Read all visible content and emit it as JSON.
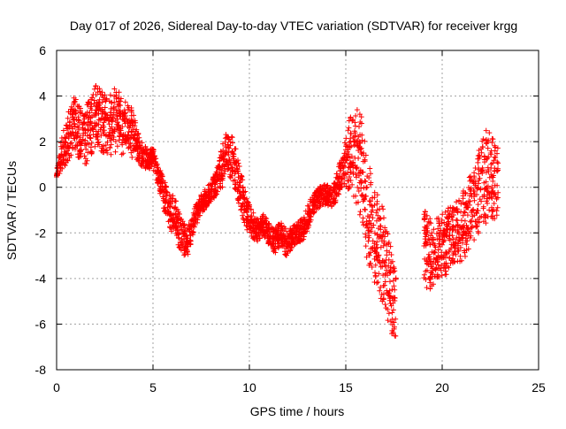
{
  "chart_data": {
    "type": "scatter",
    "title": "Day 017 of 2026, Sidereal Day-to-day VTEC variation (SDTVAR) for receiver krgg",
    "xlabel": "GPS time / hours",
    "ylabel": "SDTVAR / TECUs",
    "xlim": [
      0,
      25
    ],
    "ylim": [
      -8,
      6
    ],
    "xticks": [
      0,
      5,
      10,
      15,
      20,
      25
    ],
    "yticks": [
      -8,
      -6,
      -4,
      -2,
      0,
      2,
      4,
      6
    ],
    "grid": true,
    "marker": "+",
    "color": "#ff0000",
    "series": [
      {
        "name": "SDTVAR",
        "band_centers": [
          [
            0.0,
            0.6
          ],
          [
            0.3,
            1.6
          ],
          [
            0.6,
            2.2
          ],
          [
            0.9,
            2.8
          ],
          [
            1.2,
            2.4
          ],
          [
            1.5,
            2.2
          ],
          [
            1.8,
            2.8
          ],
          [
            2.1,
            3.2
          ],
          [
            2.4,
            2.8
          ],
          [
            2.7,
            2.6
          ],
          [
            3.0,
            3.0
          ],
          [
            3.3,
            2.8
          ],
          [
            3.6,
            2.5
          ],
          [
            3.9,
            2.4
          ],
          [
            4.2,
            1.8
          ],
          [
            4.5,
            1.4
          ],
          [
            4.8,
            1.2
          ],
          [
            5.0,
            1.3
          ],
          [
            5.3,
            0.4
          ],
          [
            5.6,
            -0.4
          ],
          [
            5.9,
            -1.0
          ],
          [
            6.2,
            -1.5
          ],
          [
            6.5,
            -2.2
          ],
          [
            6.8,
            -2.4
          ],
          [
            7.1,
            -1.5
          ],
          [
            7.4,
            -0.9
          ],
          [
            7.7,
            -0.5
          ],
          [
            8.0,
            -0.2
          ],
          [
            8.3,
            0.2
          ],
          [
            8.6,
            1.0
          ],
          [
            8.9,
            1.6
          ],
          [
            9.2,
            1.1
          ],
          [
            9.5,
            0.0
          ],
          [
            9.8,
            -1.0
          ],
          [
            10.1,
            -1.6
          ],
          [
            10.4,
            -1.9
          ],
          [
            10.7,
            -1.6
          ],
          [
            11.0,
            -2.0
          ],
          [
            11.3,
            -2.4
          ],
          [
            11.6,
            -2.0
          ],
          [
            11.9,
            -2.5
          ],
          [
            12.2,
            -2.2
          ],
          [
            12.5,
            -2.0
          ],
          [
            12.8,
            -1.8
          ],
          [
            13.1,
            -1.2
          ],
          [
            13.4,
            -0.6
          ],
          [
            13.7,
            -0.4
          ],
          [
            14.0,
            -0.3
          ],
          [
            14.3,
            -0.5
          ],
          [
            14.6,
            0.2
          ],
          [
            14.9,
            0.9
          ],
          [
            15.2,
            1.5
          ],
          [
            15.5,
            1.6
          ],
          [
            15.8,
            0.8
          ],
          [
            16.1,
            -0.8
          ],
          [
            16.4,
            -1.8
          ],
          [
            16.7,
            -2.5
          ],
          [
            17.0,
            -3.2
          ],
          [
            17.3,
            -4.4
          ],
          [
            17.6,
            -5.0
          ],
          [
            19.0,
            -2.4
          ],
          [
            19.3,
            -3.0
          ],
          [
            19.6,
            -2.8
          ],
          [
            19.9,
            -2.6
          ],
          [
            20.2,
            -2.4
          ],
          [
            20.5,
            -2.2
          ],
          [
            20.8,
            -2.0
          ],
          [
            21.1,
            -1.6
          ],
          [
            21.4,
            -1.2
          ],
          [
            21.7,
            -0.8
          ],
          [
            22.0,
            0.0
          ],
          [
            22.3,
            0.6
          ],
          [
            22.6,
            0.4
          ],
          [
            22.9,
            0.2
          ]
        ],
        "band_spreads": [
          0.3,
          0.9,
          1.2,
          1.3,
          1.4,
          1.4,
          1.5,
          1.5,
          1.5,
          1.5,
          1.6,
          1.5,
          1.4,
          1.2,
          0.8,
          0.6,
          0.5,
          0.5,
          0.6,
          0.8,
          0.9,
          1.0,
          0.9,
          0.7,
          0.6,
          0.5,
          0.5,
          0.5,
          0.6,
          1.1,
          1.2,
          1.1,
          1.0,
          0.9,
          0.7,
          0.6,
          0.5,
          0.6,
          0.6,
          0.6,
          0.7,
          0.5,
          0.5,
          0.6,
          0.6,
          0.5,
          0.5,
          0.5,
          0.5,
          0.7,
          1.0,
          1.8,
          2.4,
          2.6,
          2.7,
          2.5,
          2.3,
          2.4,
          2.2,
          1.8,
          1.9,
          1.8,
          1.6,
          1.5,
          1.6,
          1.5,
          1.6,
          1.7,
          1.8,
          1.8,
          2.2,
          2.4,
          2.0,
          1.8
        ]
      }
    ]
  }
}
